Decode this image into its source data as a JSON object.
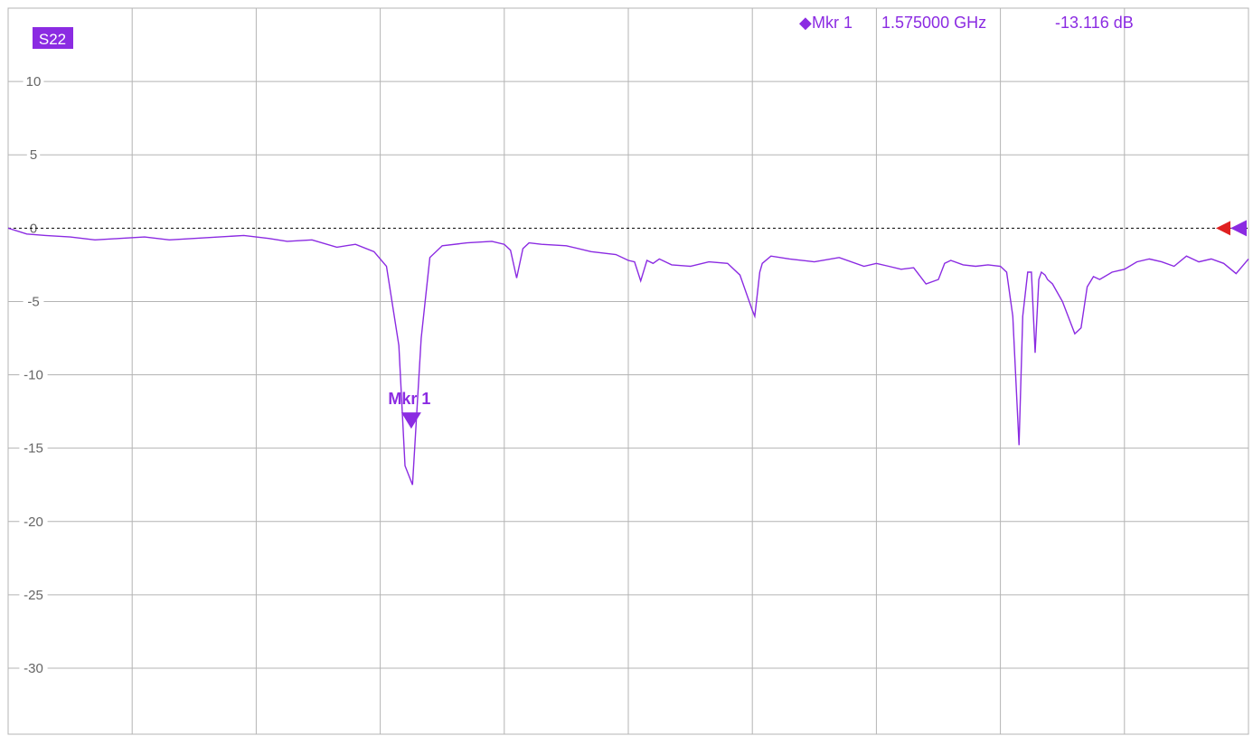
{
  "trace_label": "S22",
  "marker_readout": {
    "name": "Mkr 1",
    "frequency": "1.575000 GHz",
    "value": "-13.116 dB"
  },
  "colors": {
    "trace": "#8b2be2",
    "grid": "#b4b4b4",
    "reference_marker": "#e02020"
  },
  "chart_data": {
    "type": "line",
    "title": "",
    "xlabel": "",
    "ylabel": "",
    "ylim": [
      -34.5,
      15
    ],
    "yticks": [
      10,
      5,
      0,
      -5,
      -10,
      -15,
      -20,
      -25,
      -30
    ],
    "ytick_labels": [
      "10",
      "5",
      "0",
      "-5",
      "-10",
      "-15",
      "-20",
      "-25",
      "-30"
    ],
    "x_divisions": 10,
    "xlim": [
      0,
      10
    ],
    "grid": true,
    "reference_level": 0,
    "series": [
      {
        "name": "S22",
        "x": [
          0.0,
          0.15,
          0.3,
          0.5,
          0.7,
          0.9,
          1.1,
          1.3,
          1.5,
          1.7,
          1.9,
          2.1,
          2.25,
          2.45,
          2.65,
          2.8,
          2.95,
          3.05,
          3.15,
          3.2,
          3.26,
          3.33,
          3.4,
          3.5,
          3.7,
          3.9,
          4.0,
          4.05,
          4.1,
          4.15,
          4.2,
          4.3,
          4.5,
          4.7,
          4.9,
          5.0,
          5.05,
          5.1,
          5.15,
          5.2,
          5.25,
          5.35,
          5.5,
          5.65,
          5.8,
          5.9,
          6.0,
          6.02,
          6.04,
          6.06,
          6.08,
          6.15,
          6.3,
          6.5,
          6.7,
          6.9,
          7.0,
          7.1,
          7.2,
          7.3,
          7.4,
          7.5,
          7.55,
          7.6,
          7.7,
          7.8,
          7.9,
          8.0,
          8.05,
          8.1,
          8.15,
          8.18,
          8.22,
          8.25,
          8.28,
          8.31,
          8.33,
          8.36,
          8.38,
          8.42,
          8.5,
          8.6,
          8.65,
          8.7,
          8.75,
          8.8,
          8.9,
          9.0,
          9.1,
          9.2,
          9.3,
          9.4,
          9.5,
          9.6,
          9.7,
          9.8,
          9.9,
          10.0
        ],
        "y": [
          0.0,
          -0.4,
          -0.5,
          -0.6,
          -0.8,
          -0.7,
          -0.6,
          -0.8,
          -0.7,
          -0.6,
          -0.5,
          -0.7,
          -0.9,
          -0.8,
          -1.3,
          -1.1,
          -1.6,
          -2.6,
          -8.0,
          -16.2,
          -17.5,
          -7.5,
          -2.0,
          -1.2,
          -1.0,
          -0.9,
          -1.1,
          -1.5,
          -3.4,
          -1.4,
          -1.0,
          -1.1,
          -1.2,
          -1.6,
          -1.8,
          -2.2,
          -2.3,
          -3.6,
          -2.2,
          -2.4,
          -2.1,
          -2.5,
          -2.6,
          -2.3,
          -2.4,
          -3.2,
          -5.6,
          -6.0,
          -4.5,
          -3.0,
          -2.4,
          -1.9,
          -2.1,
          -2.3,
          -2.0,
          -2.6,
          -2.4,
          -2.6,
          -2.8,
          -2.7,
          -3.8,
          -3.5,
          -2.4,
          -2.2,
          -2.5,
          -2.6,
          -2.5,
          -2.6,
          -3.0,
          -6.0,
          -14.8,
          -6.0,
          -3.0,
          -3.0,
          -8.5,
          -3.5,
          -3.0,
          -3.2,
          -3.5,
          -3.8,
          -5.0,
          -7.2,
          -6.8,
          -4.0,
          -3.3,
          -3.5,
          -3.0,
          -2.8,
          -2.3,
          -2.1,
          -2.3,
          -2.6,
          -1.9,
          -2.3,
          -2.1,
          -2.4,
          -3.1,
          -2.1
        ]
      }
    ],
    "markers": [
      {
        "name": "Mkr 1",
        "x": 3.25,
        "y": -13.116,
        "label": "Mkr 1"
      }
    ]
  }
}
